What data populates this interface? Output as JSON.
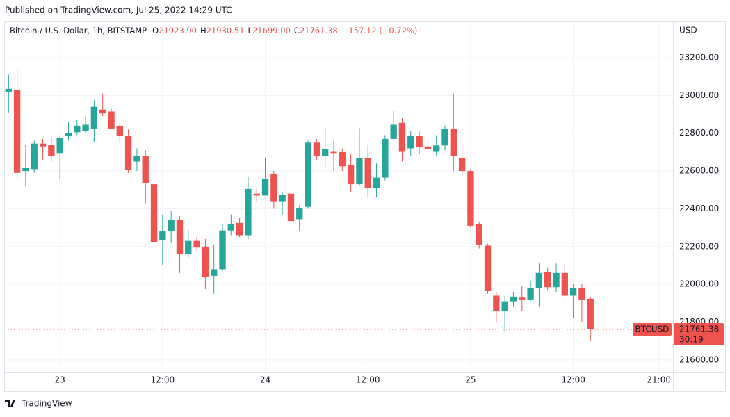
{
  "published": "Published on TradingView.com, Jul 25, 2022 14:29 UTC",
  "footer": "TradingView",
  "chart_data": {
    "type": "candlestick",
    "title": "Bitcoin / U.S. Dollar, 1h, BITSTAMP",
    "header": {
      "o": "O",
      "open": "21923.90",
      "h": "H",
      "high": "21930.51",
      "l": "L",
      "low": "21699.00",
      "c": "C",
      "close": "21761.38",
      "change": "−157.12 (−0.72%)"
    },
    "y_unit": "USD",
    "symbol_tag": "BTCUSD",
    "last_price_label": "21761.38",
    "countdown": "30:19",
    "up_color": "#26a69a",
    "down_color": "#ef5350",
    "grid": true,
    "categories": [
      null,
      null,
      null,
      null,
      null,
      null,
      "23",
      null,
      null,
      null,
      null,
      null,
      null,
      null,
      null,
      null,
      null,
      null,
      "12:00",
      null,
      null,
      null,
      null,
      null,
      null,
      null,
      null,
      null,
      null,
      null,
      "24",
      null,
      null,
      null,
      null,
      null,
      null,
      null,
      null,
      null,
      null,
      null,
      "12:00",
      null,
      null,
      null,
      null,
      null,
      null,
      null,
      null,
      null,
      null,
      null,
      "25",
      null,
      null,
      null,
      null,
      null,
      null,
      null,
      null,
      null,
      null,
      null,
      "12:00",
      null,
      null,
      null,
      null,
      null,
      null,
      null,
      null,
      null,
      "21:00",
      null
    ],
    "ohlc": {
      "open": [
        23020,
        23030,
        22600,
        22610,
        22745,
        22740,
        22695,
        22785,
        22805,
        22810,
        22825,
        22925,
        22915,
        22840,
        22785,
        22650,
        22680,
        22530,
        22235,
        22280,
        22340,
        22160,
        22230,
        22200,
        22045,
        22080,
        22285,
        22325,
        22260,
        22480,
        22470,
        22585,
        22440,
        22480,
        22345,
        22410,
        22750,
        22680,
        22705,
        22700,
        22630,
        22530,
        22670,
        22510,
        22565,
        22770,
        22855,
        22720,
        22785,
        22730,
        22705,
        22735,
        22825,
        22670,
        22600,
        22320,
        22205,
        21940,
        21860,
        21910,
        21930,
        21920,
        21980,
        22065,
        21985,
        22060,
        21940,
        21980,
        21923.9,
        null,
        null,
        null,
        null,
        null,
        null,
        null,
        null,
        null
      ],
      "high": [
        23110,
        23145,
        22740,
        22760,
        22770,
        22780,
        22790,
        22860,
        22870,
        22890,
        22975,
        23010,
        22930,
        22850,
        22820,
        22720,
        22710,
        22540,
        22370,
        22390,
        22360,
        22290,
        22250,
        22240,
        22210,
        22320,
        22370,
        22350,
        22570,
        22510,
        22670,
        22600,
        22490,
        22490,
        22420,
        22760,
        22770,
        22830,
        22760,
        22720,
        22690,
        22830,
        22740,
        22640,
        22790,
        22920,
        22880,
        22810,
        22810,
        22760,
        22790,
        22840,
        23010,
        22720,
        22610,
        22330,
        22215,
        21960,
        21940,
        21960,
        21990,
        22020,
        22110,
        22090,
        22110,
        22110,
        22000,
        22000,
        21930.51,
        null,
        null,
        null,
        null,
        null,
        null,
        null,
        null,
        null
      ],
      "low": [
        22910,
        22555,
        22520,
        22590,
        22660,
        22650,
        22560,
        22760,
        22790,
        22800,
        22750,
        22890,
        22820,
        22750,
        22590,
        22600,
        22430,
        22220,
        22100,
        22220,
        22060,
        22140,
        22180,
        21975,
        21950,
        22070,
        22260,
        22250,
        22240,
        22440,
        22470,
        22400,
        22370,
        22300,
        22280,
        22400,
        22660,
        22620,
        22600,
        22600,
        22490,
        22520,
        22460,
        22460,
        22550,
        22760,
        22650,
        22680,
        22690,
        22700,
        22680,
        22710,
        22600,
        22570,
        22300,
        22190,
        21950,
        21800,
        21750,
        21880,
        21860,
        21910,
        21880,
        21970,
        21960,
        21930,
        21820,
        21800,
        21699,
        null,
        null,
        null,
        null,
        null,
        null,
        null,
        null,
        null
      ],
      "close": [
        23035,
        22590,
        22615,
        22745,
        22730,
        22680,
        22775,
        22800,
        22840,
        22845,
        22940,
        22905,
        22825,
        22785,
        22605,
        22680,
        22535,
        22225,
        22280,
        22340,
        22160,
        22230,
        22195,
        22040,
        22080,
        22285,
        22320,
        22260,
        22505,
        22470,
        22560,
        22440,
        22475,
        22335,
        22405,
        22750,
        22680,
        22715,
        22695,
        22625,
        22530,
        22670,
        22510,
        22565,
        22770,
        22845,
        22705,
        22785,
        22725,
        22715,
        22735,
        22825,
        22680,
        22600,
        22310,
        22210,
        21965,
        21860,
        21910,
        21935,
        21920,
        21980,
        22060,
        21985,
        22060,
        21940,
        21980,
        21920,
        21761.38,
        null,
        null,
        null,
        null,
        null,
        null,
        null,
        null,
        null
      ]
    },
    "ylim": [
      21537,
      23395
    ],
    "yticks": [
      {
        "value": 21600,
        "label": "21600.00"
      },
      {
        "value": 21800,
        "label": "21800.00"
      },
      {
        "value": 22000,
        "label": "22000.00"
      },
      {
        "value": 22200,
        "label": "22200.00"
      },
      {
        "value": 22400,
        "label": "22400.00"
      },
      {
        "value": 22600,
        "label": "22600.00"
      },
      {
        "value": 22800,
        "label": "22800.00"
      },
      {
        "value": 23000,
        "label": "23000.00"
      },
      {
        "value": 23200,
        "label": "23200.00"
      }
    ]
  }
}
